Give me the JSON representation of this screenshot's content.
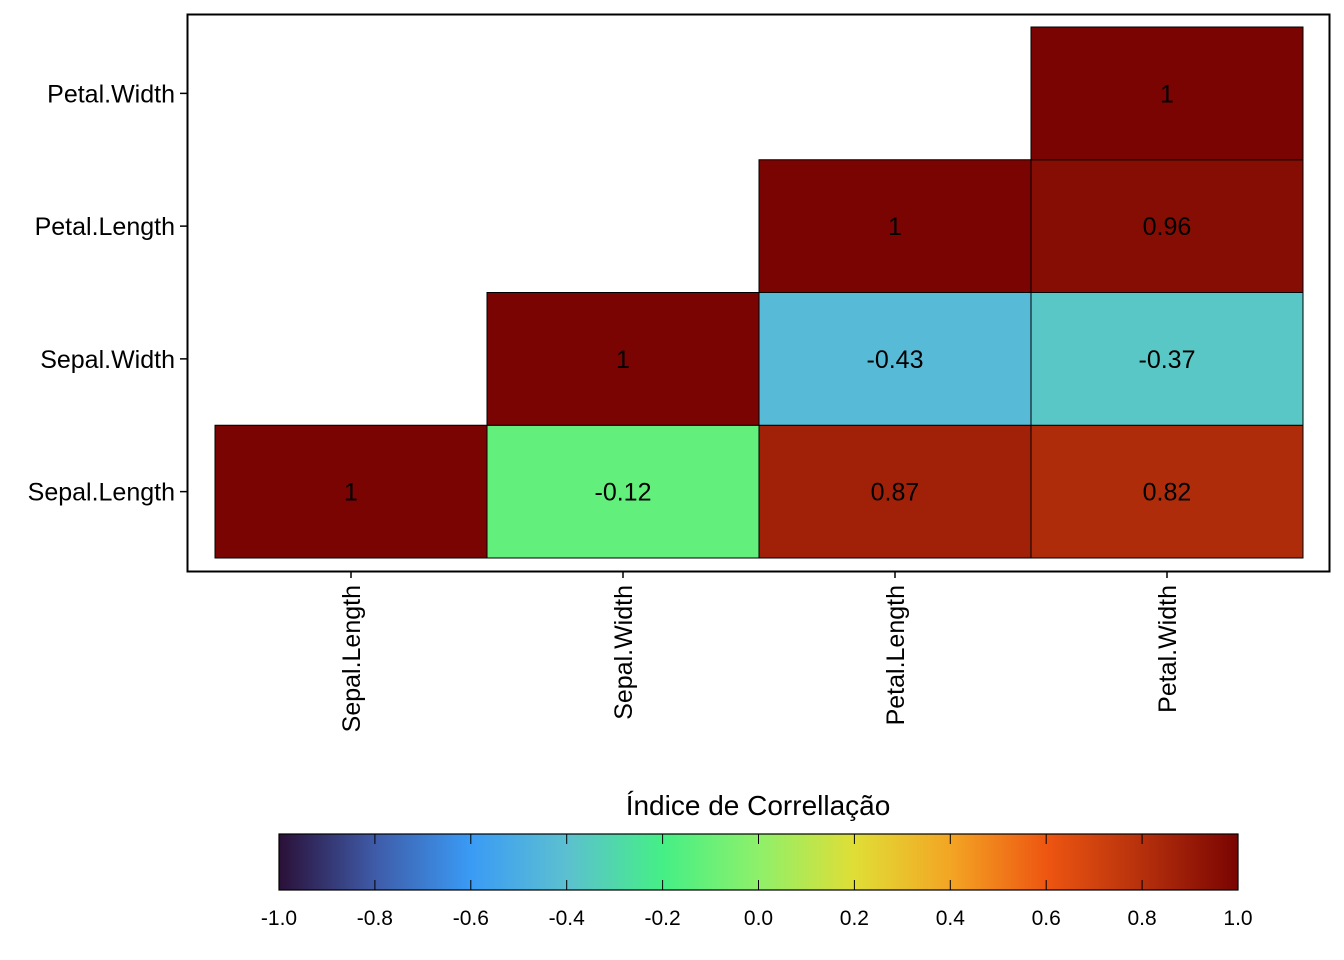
{
  "chart_data": {
    "type": "heatmap",
    "variables": [
      "Sepal.Length",
      "Sepal.Width",
      "Petal.Length",
      "Petal.Width"
    ],
    "x_categories": [
      "Sepal.Length",
      "Sepal.Width",
      "Petal.Length",
      "Petal.Width"
    ],
    "y_categories": [
      "Sepal.Length",
      "Sepal.Width",
      "Petal.Length",
      "Petal.Width"
    ],
    "cells": [
      {
        "x": "Sepal.Length",
        "y": "Sepal.Length",
        "value": 1,
        "label": "1"
      },
      {
        "x": "Sepal.Width",
        "y": "Sepal.Length",
        "value": -0.12,
        "label": "-0.12"
      },
      {
        "x": "Petal.Length",
        "y": "Sepal.Length",
        "value": 0.87,
        "label": "0.87"
      },
      {
        "x": "Petal.Width",
        "y": "Sepal.Length",
        "value": 0.82,
        "label": "0.82"
      },
      {
        "x": "Sepal.Width",
        "y": "Sepal.Width",
        "value": 1,
        "label": "1"
      },
      {
        "x": "Petal.Length",
        "y": "Sepal.Width",
        "value": -0.43,
        "label": "-0.43"
      },
      {
        "x": "Petal.Width",
        "y": "Sepal.Width",
        "value": -0.37,
        "label": "-0.37"
      },
      {
        "x": "Petal.Length",
        "y": "Petal.Length",
        "value": 1,
        "label": "1"
      },
      {
        "x": "Petal.Width",
        "y": "Petal.Length",
        "value": 0.96,
        "label": "0.96"
      },
      {
        "x": "Petal.Width",
        "y": "Petal.Width",
        "value": 1,
        "label": "1"
      }
    ],
    "colorbar": {
      "title": "Índice de Correllação",
      "range": [
        -1.0,
        1.0
      ],
      "ticks": [
        "-1.0",
        "-0.8",
        "-0.6",
        "-0.4",
        "-0.2",
        "0.0",
        "0.2",
        "0.4",
        "0.6",
        "0.8",
        "1.0"
      ],
      "colormap": "turbo",
      "placement": "bottom"
    },
    "grid": false,
    "x_tick_rotation": "vertical"
  }
}
